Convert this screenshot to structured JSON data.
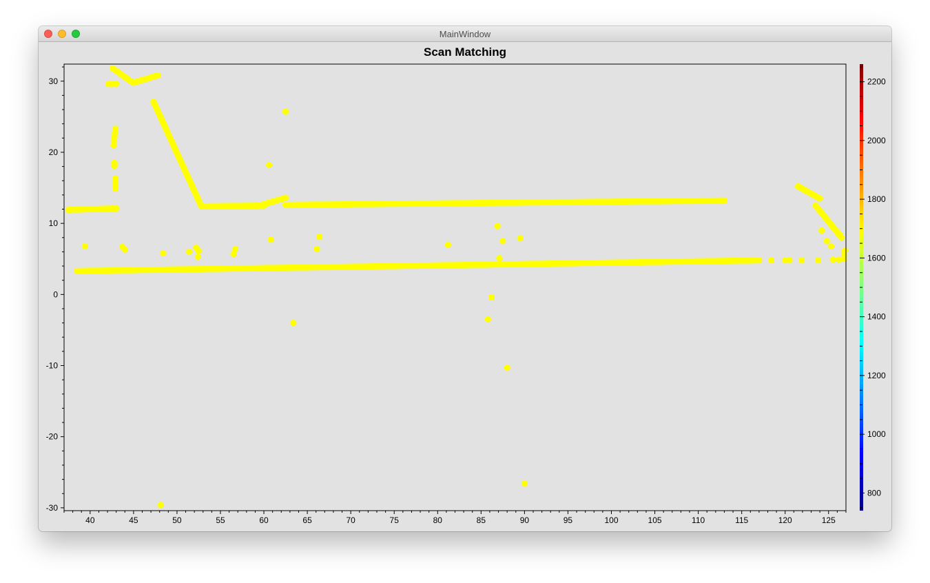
{
  "window": {
    "title": "MainWindow",
    "buttons": [
      "close",
      "minimize",
      "zoom"
    ]
  },
  "chart_data": {
    "type": "scatter",
    "title": "Scan Matching",
    "xlabel": "",
    "ylabel": "",
    "xlim": [
      37,
      127
    ],
    "ylim": [
      -30.4,
      32.4
    ],
    "xticks": [
      40,
      45,
      50,
      55,
      60,
      65,
      70,
      75,
      80,
      85,
      90,
      95,
      100,
      105,
      110,
      115,
      120,
      125
    ],
    "yticks": [
      -30,
      -20,
      -10,
      0,
      10,
      20,
      30
    ],
    "grid": false,
    "point_color": "#ffff00",
    "colorbar": {
      "range": [
        740,
        2260
      ],
      "ticks": [
        800,
        1000,
        1200,
        1400,
        1600,
        1800,
        2000,
        2200
      ],
      "colormap": "jet"
    },
    "segments": [
      {
        "name": "",
        "x_start": 37.5,
        "y_start": 11.9,
        "x_end": 43.0,
        "y_end": 12.1,
        "points": 24
      },
      {
        "name": "",
        "x_start": 42.1,
        "y_start": 29.6,
        "x_end": 43.0,
        "y_end": 29.6,
        "points": 5
      },
      {
        "name": "",
        "x_start": 42.6,
        "y_start": 31.8,
        "x_end": 44.9,
        "y_end": 29.8,
        "points": 10
      },
      {
        "name": "",
        "x_start": 45.0,
        "y_start": 29.8,
        "x_end": 47.8,
        "y_end": 30.8,
        "points": 12
      },
      {
        "name": "",
        "x_start": 47.3,
        "y_start": 27.1,
        "x_end": 52.8,
        "y_end": 12.4,
        "points": 60
      },
      {
        "name": "",
        "x_start": 52.8,
        "y_start": 12.4,
        "x_end": 60.0,
        "y_end": 12.5,
        "points": 28
      },
      {
        "name": "",
        "x_start": 60.0,
        "y_start": 12.7,
        "x_end": 62.5,
        "y_end": 13.6,
        "points": 12
      },
      {
        "name": "",
        "x_start": 62.5,
        "y_start": 12.6,
        "x_end": 113.0,
        "y_end": 13.2,
        "points": 200
      },
      {
        "name": "",
        "x_start": 38.5,
        "y_start": 3.3,
        "x_end": 117.0,
        "y_end": 4.8,
        "points": 320
      },
      {
        "name": "",
        "x_start": 121.5,
        "y_start": 15.2,
        "x_end": 124.0,
        "y_end": 13.5,
        "points": 14
      },
      {
        "name": "",
        "x_start": 123.5,
        "y_start": 12.5,
        "x_end": 126.5,
        "y_end": 8.0,
        "points": 22
      },
      {
        "name": "",
        "x_start": 126.8,
        "y_start": 6.0,
        "x_end": 126.8,
        "y_end": 5.0,
        "points": 5
      },
      {
        "name": "",
        "x_start": 42.9,
        "y_start": 23.3,
        "x_end": 42.7,
        "y_end": 21.0,
        "points": 5
      },
      {
        "name": "",
        "x_start": 42.8,
        "y_start": 18.5,
        "x_end": 42.8,
        "y_end": 18.1,
        "points": 3
      },
      {
        "name": "",
        "x_start": 42.9,
        "y_start": 16.3,
        "x_end": 42.9,
        "y_end": 14.9,
        "points": 5
      }
    ],
    "points": [
      [
        62.5,
        25.7
      ],
      [
        60.6,
        18.2
      ],
      [
        39.4,
        6.8
      ],
      [
        43.7,
        6.7
      ],
      [
        44.0,
        6.3
      ],
      [
        48.4,
        5.8
      ],
      [
        51.4,
        6.0
      ],
      [
        52.2,
        6.6
      ],
      [
        52.4,
        5.3
      ],
      [
        52.5,
        6.1
      ],
      [
        56.5,
        5.7
      ],
      [
        56.7,
        6.4
      ],
      [
        60.8,
        7.7
      ],
      [
        66.1,
        6.4
      ],
      [
        66.4,
        8.1
      ],
      [
        81.2,
        7.0
      ],
      [
        86.9,
        9.6
      ],
      [
        87.5,
        7.5
      ],
      [
        87.1,
        5.1
      ],
      [
        89.5,
        7.9
      ],
      [
        63.4,
        -4.0
      ],
      [
        86.2,
        -0.4
      ],
      [
        85.8,
        -3.5
      ],
      [
        88.0,
        -10.3
      ],
      [
        90.0,
        -26.6
      ],
      [
        48.1,
        -29.6
      ],
      [
        118.4,
        4.8
      ],
      [
        120.0,
        4.8
      ],
      [
        121.9,
        4.8
      ],
      [
        123.8,
        4.8
      ],
      [
        124.2,
        9.0
      ],
      [
        124.8,
        7.5
      ],
      [
        125.3,
        6.8
      ],
      [
        125.5,
        4.9
      ],
      [
        126.2,
        4.9
      ],
      [
        126.3,
        8.4
      ],
      [
        126.9,
        6.2
      ],
      [
        120.5,
        4.8
      ]
    ]
  }
}
